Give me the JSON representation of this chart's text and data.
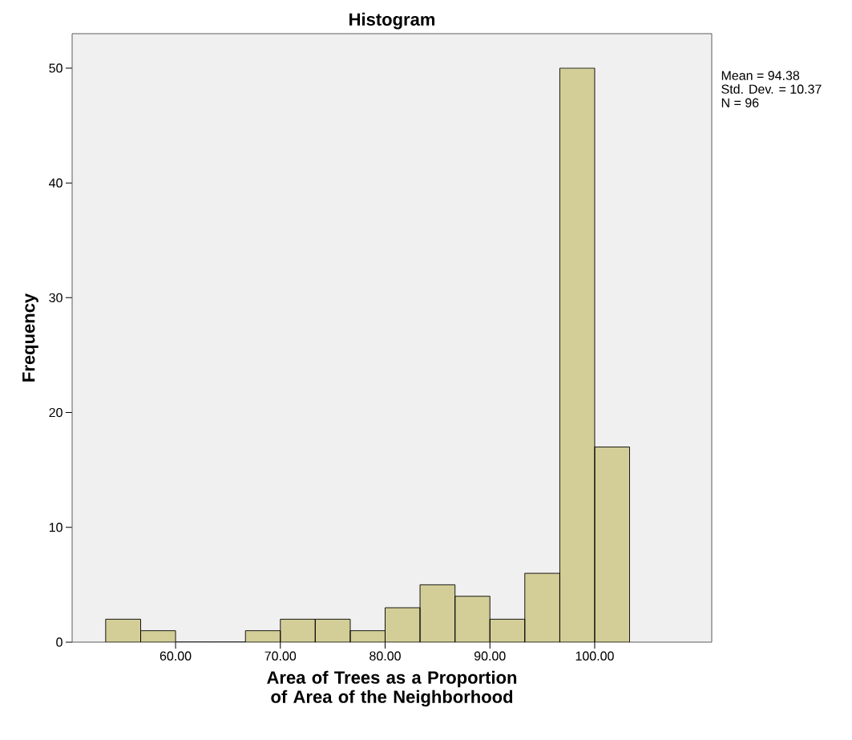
{
  "chart_data": {
    "type": "histogram",
    "title": "Histogram",
    "xlabel": "Area of Trees as a Proportion of Area of the Neighborhood",
    "ylabel": "Frequency",
    "bins": [
      53.33,
      56.67,
      60,
      63.33,
      66.67,
      70,
      73.33,
      76.67,
      80,
      83.33,
      86.67,
      90,
      93.33,
      96.67,
      100,
      103.33
    ],
    "values": [
      2,
      1,
      0,
      0,
      1,
      2,
      2,
      1,
      3,
      5,
      4,
      2,
      6,
      50,
      17
    ],
    "color": "#d3ce97",
    "xlim": [
      50.13,
      111.17
    ],
    "ylim": [
      0,
      53
    ],
    "xticks": [
      {
        "value": 60,
        "label": "60.00"
      },
      {
        "value": 70,
        "label": "70.00"
      },
      {
        "value": 80,
        "label": "80.00"
      },
      {
        "value": 90,
        "label": "90.00"
      },
      {
        "value": 100,
        "label": "100.00"
      }
    ],
    "yticks": [
      0,
      10,
      20,
      30,
      40,
      50
    ],
    "annotations": [
      "Mean = 94.38",
      "Std. Dev. = 10.37",
      "N = 96"
    ]
  }
}
